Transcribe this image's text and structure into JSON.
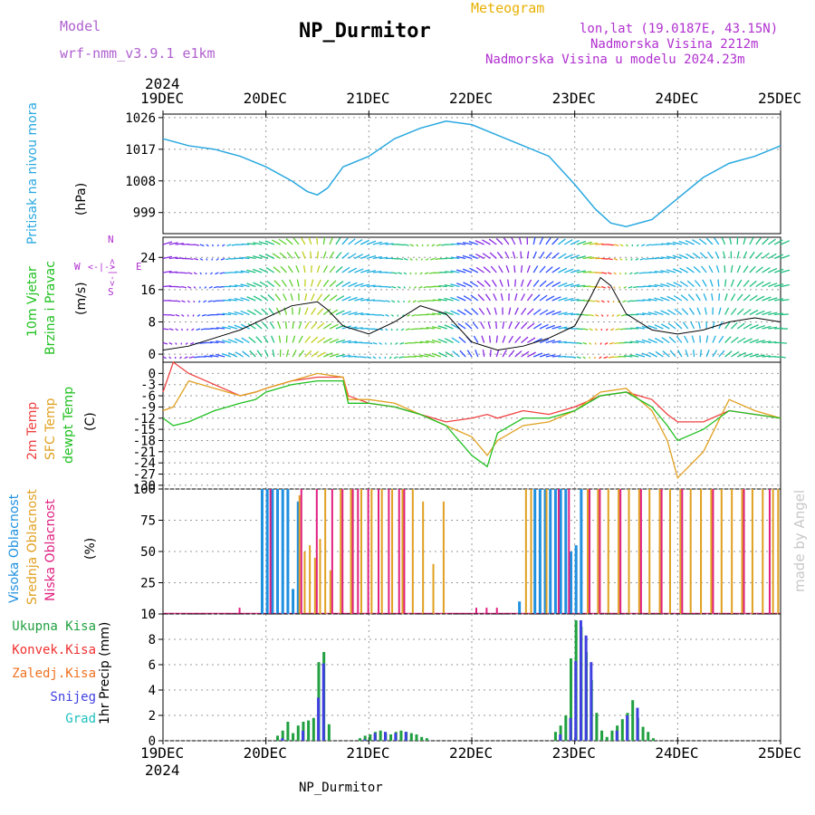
{
  "header": {
    "model_label": "Model",
    "model_name": "wrf-nmm_v3.9.1 e1km",
    "title": "NP_Durmitor",
    "subtitle": "Meteogram",
    "location": "lon,lat (19.0187E, 43.15N)",
    "elevation": "Nadmorska Visina 2212m",
    "model_elevation": "Nadmorska Visina u modelu 2024.23m"
  },
  "footer": {
    "station": "NP_Durmitor"
  },
  "watermark": "made by Angel",
  "time_axis": {
    "year": "2024",
    "ticks": [
      "19DEC",
      "20DEC",
      "21DEC",
      "22DEC",
      "23DEC",
      "24DEC",
      "25DEC"
    ]
  },
  "colors": {
    "pressure": "#29a8e0",
    "temp2m": "#f04040",
    "sfc_temp": "#e0a020",
    "dewpt": "#20c020",
    "high_cloud": "#2090e0",
    "mid_cloud": "#e0a020",
    "low_cloud": "#e02080",
    "total_precip": "#20a040",
    "conv_precip": "#f03030",
    "frz_precip": "#f07020",
    "snow": "#4040e0",
    "hail": "#20c0c0"
  },
  "panel_labels": {
    "pressure": [
      "Pritisak na nivou mora"
    ],
    "pressure_unit": "(hPa)",
    "wind": [
      "10m Vjetar",
      "Brzina i Pravac"
    ],
    "wind_unit": "(m/s)",
    "wind_compass_s": "S",
    "wind_compass_n": "N",
    "wind_compass_w": "W",
    "wind_compass_e": "E",
    "wind_compass_ns": "<-|->",
    "wind_compass_we": "<-|->",
    "temp": [
      "2m Temp",
      "SFC Temp",
      "dewpt Temp"
    ],
    "temp_unit": "(C)",
    "cloud": [
      "Visoka Oblacnost",
      "Srednja Oblacnost",
      "Niska Oblacnost"
    ],
    "cloud_unit": "(%)",
    "precip": [
      "Ukupna Kisa",
      "Konvek.Kisa",
      "Zaledj.Kisa",
      "Snijeg",
      "Grad"
    ],
    "precip_unit": "1hr Precip (mm)"
  },
  "chart_data": [
    {
      "type": "line",
      "name": "pressure",
      "ylabel": "(hPa)",
      "yticks": [
        999,
        1008,
        1017,
        1026
      ],
      "ylim": [
        993,
        1027
      ],
      "x_day": [
        0,
        0.25,
        0.5,
        0.75,
        1,
        1.25,
        1.4,
        1.5,
        1.6,
        1.75,
        2,
        2.25,
        2.5,
        2.75,
        3,
        3.25,
        3.5,
        3.75,
        4,
        4.2,
        4.35,
        4.5,
        4.75,
        5,
        5.25,
        5.5,
        5.75,
        6
      ],
      "values": [
        1020,
        1018,
        1017,
        1015,
        1012,
        1008,
        1005,
        1004,
        1006,
        1012,
        1015,
        1020,
        1023,
        1025,
        1024,
        1021,
        1018,
        1015,
        1007,
        1000,
        996,
        995,
        997,
        1003,
        1009,
        1013,
        1015,
        1018
      ]
    },
    {
      "type": "line",
      "name": "wind",
      "ylabel": "(m/s)",
      "yticks": [
        0,
        8,
        16,
        24
      ],
      "ylim": [
        -2,
        29
      ],
      "x_day": [
        0,
        0.25,
        0.5,
        0.75,
        1,
        1.25,
        1.5,
        1.6,
        1.75,
        2,
        2.25,
        2.5,
        2.75,
        3,
        3.25,
        3.5,
        3.75,
        4,
        4.15,
        4.25,
        4.35,
        4.5,
        4.75,
        5,
        5.25,
        5.5,
        5.75,
        6
      ],
      "values": [
        1,
        2,
        4,
        6,
        9,
        12,
        13,
        11,
        7,
        5,
        8,
        12,
        10,
        3,
        1,
        2,
        4,
        7,
        14,
        19,
        17,
        10,
        6,
        5,
        6,
        8,
        9,
        8
      ]
    },
    {
      "type": "line",
      "name": "temperature",
      "ylabel": "(C)",
      "yticks": [
        0,
        -3,
        -6,
        -9,
        -12,
        -15,
        -18,
        -21,
        -24,
        -27,
        -30
      ],
      "ylim": [
        -31,
        3
      ],
      "x_day": [
        0,
        0.1,
        0.25,
        0.5,
        0.75,
        0.9,
        1,
        1.25,
        1.5,
        1.75,
        1.8,
        2,
        2.25,
        2.5,
        2.75,
        3,
        3.15,
        3.25,
        3.5,
        3.75,
        4,
        4.25,
        4.5,
        4.75,
        4.9,
        5,
        5.25,
        5.5,
        5.75,
        6
      ],
      "series": [
        {
          "name": "2m Temp",
          "values": [
            -5,
            3,
            0,
            -3,
            -6,
            -5,
            -4,
            -2,
            -1,
            -1,
            -6,
            -8,
            -9,
            -11,
            -13,
            -12,
            -11,
            -12,
            -10,
            -11,
            -9,
            -6,
            -5,
            -7,
            -11,
            -13,
            -13,
            -10,
            -11,
            -12
          ]
        },
        {
          "name": "SFC Temp",
          "values": [
            -10,
            -9,
            -2,
            -4,
            -6,
            -5,
            -4,
            -2,
            0,
            -1,
            -7,
            -7,
            -8,
            -11,
            -14,
            -17,
            -22,
            -18,
            -14,
            -13,
            -10,
            -5,
            -4,
            -10,
            -18,
            -28,
            -21,
            -7,
            -10,
            -12
          ]
        },
        {
          "name": "dewpt Temp",
          "values": [
            -12,
            -14,
            -13,
            -10,
            -8,
            -7,
            -5,
            -3,
            -2,
            -2,
            -8,
            -8,
            -9,
            -11,
            -14,
            -22,
            -25,
            -16,
            -12,
            -12,
            -10,
            -6,
            -5,
            -9,
            -14,
            -18,
            -15,
            -10,
            -11,
            -12
          ]
        }
      ]
    },
    {
      "type": "bar",
      "name": "cloud",
      "ylabel": "(%)",
      "yticks": [
        0,
        25,
        50,
        75,
        100
      ],
      "ylim": [
        0,
        100
      ],
      "series": [
        {
          "name": "Visoka Oblacnost",
          "x_day": [
            0.95,
            1.0,
            1.05,
            1.1,
            1.15,
            1.2,
            1.25,
            1.3,
            3.45,
            3.6,
            3.65,
            3.7,
            3.75,
            3.8,
            3.85,
            3.9,
            3.95,
            4.0,
            4.05
          ],
          "values": [
            100,
            100,
            100,
            100,
            100,
            100,
            20,
            90,
            10,
            100,
            100,
            100,
            100,
            100,
            100,
            100,
            50,
            55,
            100
          ]
        },
        {
          "name": "Srednja Oblacnost",
          "x_day": [
            1.3,
            1.35,
            1.4,
            1.45,
            1.5,
            1.55,
            1.6,
            1.7,
            1.8,
            1.9,
            2.0,
            2.1,
            2.2,
            2.3,
            2.4,
            2.5,
            2.6,
            2.7,
            3.5,
            3.55,
            3.7,
            4.1,
            4.2,
            4.3,
            4.4,
            4.5,
            4.6,
            4.7,
            4.8,
            4.9,
            5.0,
            5.1,
            5.2,
            5.3,
            5.4,
            5.5,
            5.6,
            5.7,
            5.8,
            5.9,
            5.95
          ],
          "values": [
            95,
            50,
            55,
            45,
            60,
            100,
            35,
            100,
            100,
            100,
            100,
            100,
            100,
            100,
            100,
            90,
            40,
            90,
            100,
            100,
            100,
            100,
            100,
            100,
            100,
            100,
            100,
            100,
            100,
            100,
            100,
            100,
            100,
            100,
            100,
            100,
            100,
            100,
            100,
            100,
            100
          ]
        },
        {
          "name": "Niska Oblacnost",
          "x_day": [
            0.7,
            1.0,
            1.3,
            1.45,
            1.6,
            1.7,
            1.8,
            1.85,
            1.95,
            2.05,
            2.15,
            2.25,
            2.3,
            3.0,
            3.1,
            3.2,
            3.8,
            3.9,
            4.1,
            4.2,
            4.4,
            4.6,
            4.8,
            5.0,
            5.3,
            5.6,
            5.85
          ],
          "values": [
            5,
            100,
            100,
            100,
            100,
            100,
            100,
            100,
            100,
            100,
            100,
            100,
            100,
            5,
            5,
            5,
            100,
            100,
            100,
            100,
            100,
            100,
            100,
            100,
            100,
            100,
            100
          ]
        }
      ]
    },
    {
      "type": "bar",
      "name": "precip",
      "ylabel": "1hr Precip (mm)",
      "yticks": [
        0,
        2,
        4,
        6,
        8,
        10
      ],
      "ylim": [
        0,
        10
      ],
      "series": [
        {
          "name": "Ukupna Kisa",
          "x_day": [
            1.1,
            1.15,
            1.2,
            1.25,
            1.3,
            1.35,
            1.4,
            1.45,
            1.5,
            1.55,
            1.6,
            1.9,
            1.95,
            2.0,
            2.05,
            2.1,
            2.15,
            2.2,
            2.25,
            2.3,
            2.35,
            2.4,
            2.45,
            2.5,
            2.55,
            3.8,
            3.85,
            3.9,
            3.95,
            4.0,
            4.05,
            4.1,
            4.15,
            4.2,
            4.25,
            4.3,
            4.35,
            4.4,
            4.45,
            4.5,
            4.55,
            4.6,
            4.65,
            4.7,
            4.75
          ],
          "values": [
            0.4,
            0.8,
            1.5,
            0.6,
            1.2,
            1.5,
            1.6,
            1.8,
            6.2,
            7.0,
            1.3,
            0.2,
            0.4,
            0.5,
            0.7,
            0.8,
            0.6,
            0.5,
            0.7,
            0.8,
            0.7,
            0.6,
            0.5,
            0.3,
            0.2,
            0.7,
            1.2,
            2.0,
            6.5,
            9.5,
            9.0,
            7.0,
            4.8,
            2.2,
            0.8,
            0.3,
            0.8,
            1.2,
            1.7,
            2.2,
            3.2,
            1.8,
            1.1,
            0.7,
            0.2
          ]
        },
        {
          "name": "Snijeg",
          "x_day": [
            1.12,
            1.32,
            1.47,
            1.52,
            1.92,
            2.02,
            2.12,
            2.22,
            2.32,
            3.82,
            3.92,
            3.97,
            4.02,
            4.07,
            4.12,
            4.37,
            4.47,
            4.57
          ],
          "values": [
            0.2,
            0.8,
            3.4,
            6.1,
            0.1,
            0.6,
            0.7,
            0.6,
            0.7,
            0.5,
            1.8,
            6.3,
            9.5,
            8.3,
            6.2,
            0.8,
            2.0,
            2.6
          ]
        }
      ]
    }
  ]
}
